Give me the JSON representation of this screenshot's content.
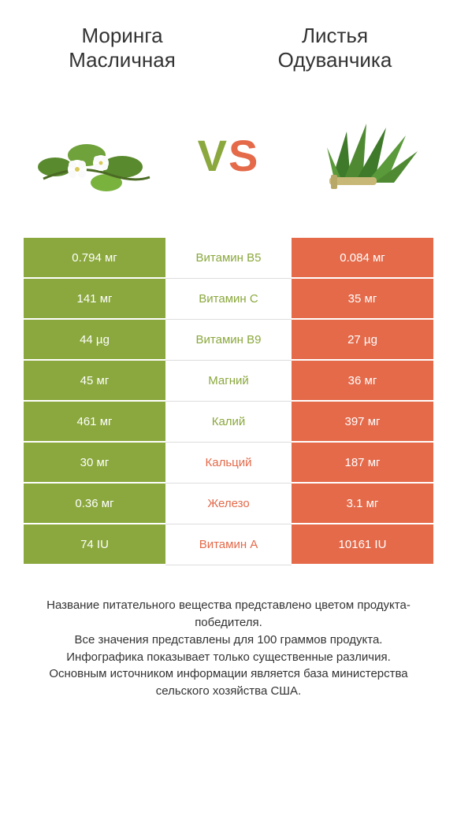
{
  "colors": {
    "left_bg": "#8aa83d",
    "right_bg": "#e46a4a",
    "mid_border": "#dddddd",
    "text": "#333333",
    "cell_text": "#ffffff"
  },
  "left_title": "Моринга масличная",
  "right_title": "Листья одуванчика",
  "vs_v": "V",
  "vs_s": "S",
  "rows": [
    {
      "left": "0.794 мг",
      "mid": "Витамин B5",
      "right": "0.084 мг",
      "winner": "left"
    },
    {
      "left": "141 мг",
      "mid": "Витамин C",
      "right": "35 мг",
      "winner": "left"
    },
    {
      "left": "44 µg",
      "mid": "Витамин B9",
      "right": "27 µg",
      "winner": "left"
    },
    {
      "left": "45 мг",
      "mid": "Магний",
      "right": "36 мг",
      "winner": "left"
    },
    {
      "left": "461 мг",
      "mid": "Калий",
      "right": "397 мг",
      "winner": "left"
    },
    {
      "left": "30 мг",
      "mid": "Кальций",
      "right": "187 мг",
      "winner": "right"
    },
    {
      "left": "0.36 мг",
      "mid": "Железо",
      "right": "3.1 мг",
      "winner": "right"
    },
    {
      "left": "74 IU",
      "mid": "Витамин A",
      "right": "10161 IU",
      "winner": "right"
    }
  ],
  "footer_lines": [
    "Название питательного вещества представлено цветом продукта-победителя.",
    "Все значения представлены для 100 граммов продукта.",
    "Инфографика показывает только существенные различия.",
    "Основным источником информации является база министерства сельского хозяйства США."
  ]
}
